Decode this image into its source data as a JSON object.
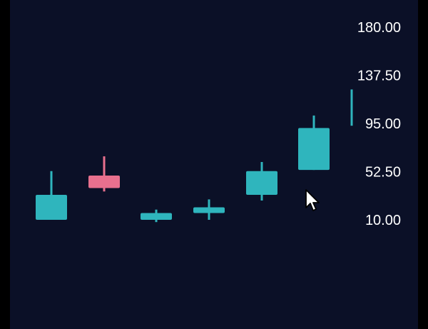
{
  "colors": {
    "background": "#0b1027",
    "up": "#2fb5bd",
    "down": "#e8708e",
    "text": "#ffffff"
  },
  "chart_data": {
    "type": "candlestick",
    "title": "",
    "xlabel": "",
    "ylabel": "",
    "ylim": [
      10,
      180
    ],
    "yticks": [
      "180.00",
      "137.50",
      "95.00",
      "52.50",
      "10.00"
    ],
    "ytick_values": [
      180,
      137.5,
      95,
      52.5,
      10
    ],
    "candles": [
      {
        "open": 10,
        "close": 32,
        "high": 53,
        "low": 10,
        "direction": "up"
      },
      {
        "open": 49,
        "close": 38,
        "high": 66,
        "low": 35,
        "direction": "down"
      },
      {
        "open": 10,
        "close": 16,
        "high": 19,
        "low": 8,
        "direction": "up"
      },
      {
        "open": 16,
        "close": 21,
        "high": 28,
        "low": 10,
        "direction": "up"
      },
      {
        "open": 32,
        "close": 53,
        "high": 61,
        "low": 27,
        "direction": "up"
      },
      {
        "open": 54,
        "close": 91,
        "high": 102,
        "low": 54,
        "direction": "up"
      },
      {
        "open": 93,
        "close": 122,
        "high": 125,
        "low": 93,
        "direction": "up",
        "partial": true
      }
    ]
  },
  "cursor": {
    "icon": "mouse-pointer-icon"
  }
}
